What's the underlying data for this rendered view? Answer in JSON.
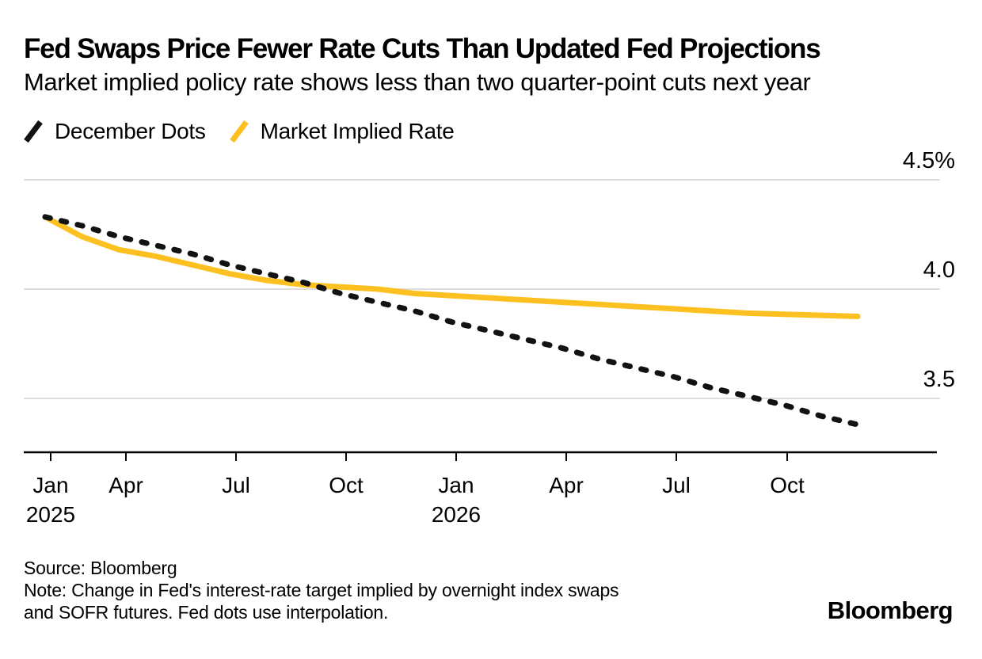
{
  "header": {
    "title": "Fed Swaps Price Fewer Rate Cuts Than Updated Fed Projections",
    "subtitle": "Market implied policy rate shows less than two quarter-point cuts next year"
  },
  "legend": [
    {
      "label": "December Dots",
      "color": "#121212"
    },
    {
      "label": "Market Implied Rate",
      "color": "#FCC120"
    }
  ],
  "footer": {
    "source": "Source: Bloomberg",
    "note_line1": "Note: Change in Fed's interest-rate target implied by overnight index swaps",
    "note_line2": "and SOFR futures. Fed dots use interpolation.",
    "brand": "Bloomberg"
  },
  "chart_data": {
    "type": "line",
    "title": "Fed Swaps Price Fewer Rate Cuts Than Updated Fed Projections",
    "x": [
      "Jan 2025",
      "Feb 2025",
      "Mar 2025",
      "Apr 2025",
      "May 2025",
      "Jun 2025",
      "Jul 2025",
      "Aug 2025",
      "Sep 2025",
      "Oct 2025",
      "Nov 2025",
      "Dec 2025",
      "Jan 2026",
      "Feb 2026",
      "Mar 2026",
      "Apr 2026",
      "May 2026",
      "Jun 2026",
      "Jul 2026",
      "Aug 2026",
      "Sep 2026",
      "Oct 2026",
      "Nov 2026"
    ],
    "series": [
      {
        "name": "December Dots",
        "style": "dashed",
        "color": "#121212",
        "values": [
          4.33,
          4.29,
          4.24,
          4.2,
          4.16,
          4.11,
          4.07,
          4.03,
          3.98,
          3.94,
          3.9,
          3.85,
          3.81,
          3.77,
          3.73,
          3.68,
          3.64,
          3.6,
          3.55,
          3.51,
          3.47,
          3.42,
          3.38
        ]
      },
      {
        "name": "Market Implied Rate",
        "style": "solid",
        "color": "#FCC120",
        "values": [
          4.33,
          4.24,
          4.18,
          4.15,
          4.11,
          4.07,
          4.04,
          4.02,
          4.01,
          4.0,
          3.98,
          3.97,
          3.96,
          3.95,
          3.94,
          3.93,
          3.92,
          3.91,
          3.9,
          3.89,
          3.885,
          3.88,
          3.875
        ]
      }
    ],
    "y_ticks": [
      {
        "label": "4.5%",
        "value": 4.5
      },
      {
        "label": "4.0",
        "value": 4.0
      },
      {
        "label": "3.5",
        "value": 3.5
      }
    ],
    "x_tick_labels": [
      "Jan",
      "Apr",
      "Jul",
      "Oct",
      "Jan",
      "Apr",
      "Jul",
      "Oct"
    ],
    "x_year_labels": [
      {
        "text": "2025",
        "tick_index": 0
      },
      {
        "text": "2026",
        "tick_index": 4
      }
    ],
    "ylim": [
      3.25,
      4.6
    ],
    "grid": "horizontal",
    "legend_position": "top-left",
    "colors": {
      "grid": "#D9D9D9",
      "axis": "#000000"
    }
  }
}
